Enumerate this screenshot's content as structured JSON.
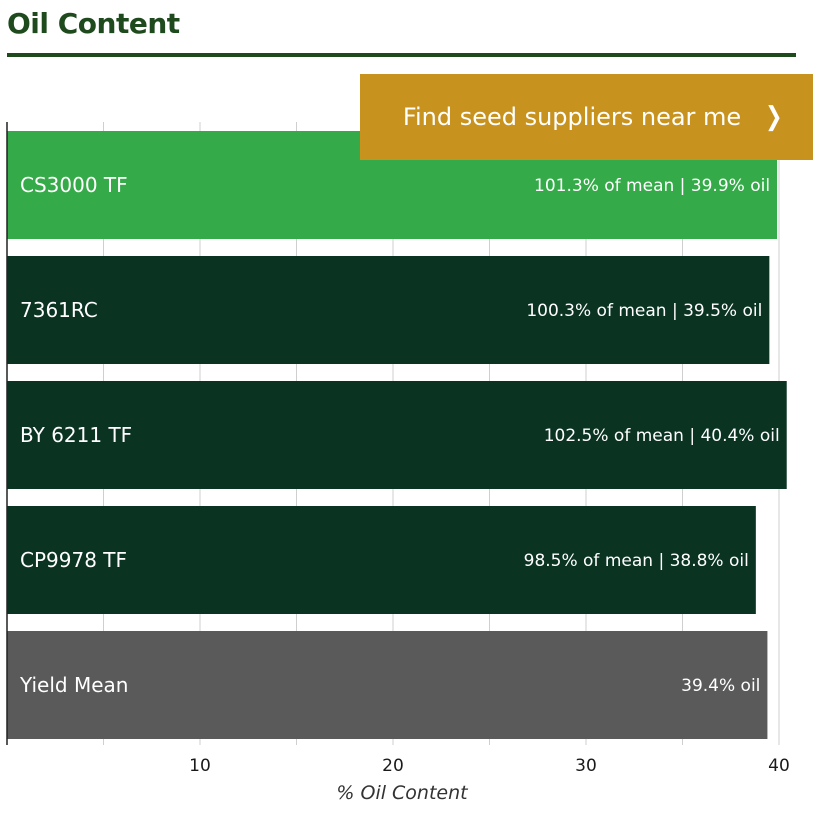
{
  "header": {
    "title": "Oil Content"
  },
  "cta": {
    "label": "Find seed suppliers near me",
    "icon": "chevron-right-icon"
  },
  "colors": {
    "title": "#1e4a1e",
    "rule": "#1e4a1e",
    "cta_bg": "#c8921e",
    "highlight_bar": "#34ab48",
    "bar": "#0a3322",
    "mean_bar": "#5a5a5a",
    "grid": "#cfcfcf",
    "axis": "#222222"
  },
  "chart_data": {
    "type": "bar",
    "orientation": "horizontal",
    "title": "Oil Content",
    "xlabel": "% Oil Content",
    "xlim": [
      0,
      40.5
    ],
    "major_ticks": [
      10,
      20,
      30,
      40
    ],
    "minor_ticks": [
      5,
      15,
      25,
      35
    ],
    "grid": true,
    "categories": [
      "CS3000 TF",
      "7361RC",
      "BY 6211 TF",
      "CP9978 TF",
      "Yield Mean"
    ],
    "values": [
      39.9,
      39.5,
      40.4,
      38.8,
      39.4
    ],
    "value_labels": [
      "101.3% of mean | 39.9% oil",
      "100.3% of mean | 39.5% oil",
      "102.5% of mean | 40.4% oil",
      "98.5% of mean | 38.8% oil",
      "39.4% oil"
    ],
    "bar_styles": [
      "highlight",
      "normal",
      "normal",
      "normal",
      "mean"
    ]
  }
}
